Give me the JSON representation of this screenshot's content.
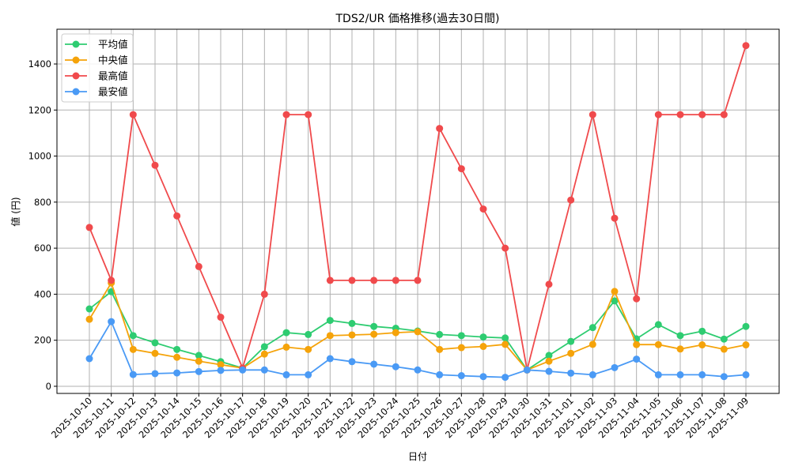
{
  "chart_data": {
    "type": "line",
    "title": "TDS2/UR 価格推移(過去30日間)",
    "xlabel": "日付",
    "ylabel": "値 (円)",
    "ylim": [
      -31,
      1551
    ],
    "yticks": [
      0,
      200,
      400,
      600,
      800,
      1000,
      1200,
      1400
    ],
    "grid": true,
    "legend_position": "upper left",
    "categories": [
      "2025-10-10",
      "2025-10-11",
      "2025-10-12",
      "2025-10-13",
      "2025-10-14",
      "2025-10-15",
      "2025-10-16",
      "2025-10-17",
      "2025-10-18",
      "2025-10-19",
      "2025-10-20",
      "2025-10-21",
      "2025-10-22",
      "2025-10-23",
      "2025-10-24",
      "2025-10-25",
      "2025-10-26",
      "2025-10-27",
      "2025-10-28",
      "2025-10-29",
      "2025-10-30",
      "2025-10-31",
      "2025-11-01",
      "2025-11-02",
      "2025-11-03",
      "2025-11-04",
      "2025-11-05",
      "2025-11-06",
      "2025-11-07",
      "2025-11-08",
      "2025-11-09"
    ],
    "series": [
      {
        "name": "平均値",
        "color": "#2ecc71",
        "values": [
          336,
          411,
          220,
          189,
          160,
          134,
          107,
          79,
          172,
          233,
          225,
          286,
          273,
          260,
          252,
          240,
          225,
          220,
          214,
          210,
          71,
          134,
          195,
          255,
          371,
          206,
          268,
          220,
          239,
          205,
          260
        ]
      },
      {
        "name": "中央値",
        "color": "#f5a30a",
        "values": [
          291,
          449,
          160,
          143,
          126,
          109,
          94,
          79,
          140,
          170,
          160,
          220,
          223,
          226,
          233,
          237,
          160,
          168,
          173,
          182,
          71,
          109,
          143,
          182,
          412,
          181,
          181,
          162,
          180,
          161,
          180
        ]
      },
      {
        "name": "最高値",
        "color": "#f04a4c",
        "values": [
          690,
          460,
          1180,
          960,
          740,
          520,
          300,
          79,
          400,
          1180,
          1180,
          460,
          460,
          460,
          460,
          460,
          1120,
          945,
          770,
          600,
          71,
          443,
          809,
          1180,
          730,
          380,
          1180,
          1180,
          1180,
          1180,
          1480
        ]
      },
      {
        "name": "最安値",
        "color": "#4a9af5",
        "values": [
          120,
          281,
          51,
          55,
          58,
          64,
          69,
          71,
          71,
          50,
          50,
          120,
          107,
          96,
          85,
          71,
          50,
          46,
          42,
          39,
          71,
          65,
          57,
          50,
          81,
          118,
          50,
          50,
          50,
          42,
          50
        ]
      }
    ]
  }
}
